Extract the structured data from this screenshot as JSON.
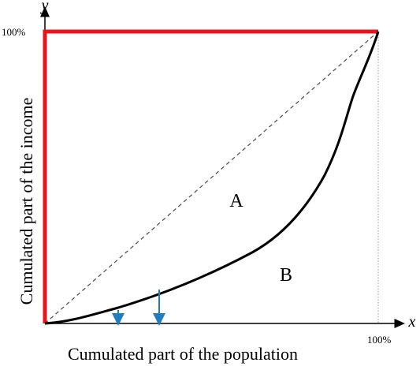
{
  "diagram": {
    "axis_x_var": "x",
    "axis_y_var": "y",
    "y_tick_100": "100%",
    "x_tick_100": "100%",
    "x_axis_label": "Cumulated part of the  population",
    "y_axis_label": "Cumulated part of the  income",
    "region_a": "A",
    "region_b": "B"
  },
  "colors": {
    "perfect_inequality_line": "#e8141b",
    "lorenz_curve": "#000000",
    "equality_line": "#555555",
    "arrows": "#1f7ec2",
    "frame_right": "#999999"
  }
}
